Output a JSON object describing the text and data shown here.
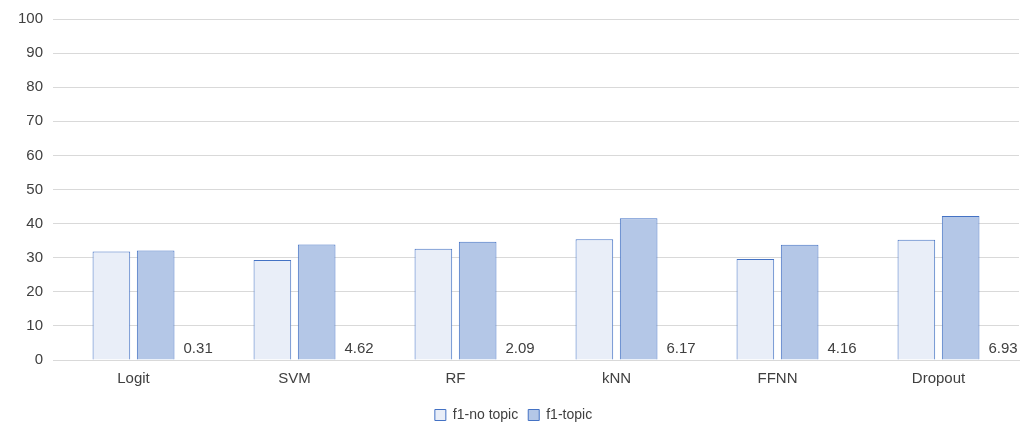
{
  "chart_data": {
    "type": "bar",
    "categories": [
      "Logit",
      "SVM",
      "RF",
      "kNN",
      "FFNN",
      "Dropout"
    ],
    "series": [
      {
        "name": "f1-no topic",
        "color": "#e9eef8",
        "values": [
          31.8,
          29.3,
          32.6,
          35.4,
          29.6,
          35.3
        ]
      },
      {
        "name": "f1-topic",
        "color": "#b4c7e7",
        "values": [
          32.1,
          33.9,
          34.7,
          41.6,
          33.8,
          42.2
        ]
      }
    ],
    "ylim": [
      0,
      100
    ],
    "yticks": [
      0,
      10,
      20,
      30,
      40,
      50,
      60,
      70,
      80,
      90,
      100
    ],
    "grid": "y",
    "legend": "bottom",
    "annotations": [
      "0.31",
      "4.62",
      "2.09",
      "6.17",
      "4.16",
      "6.93"
    ]
  }
}
